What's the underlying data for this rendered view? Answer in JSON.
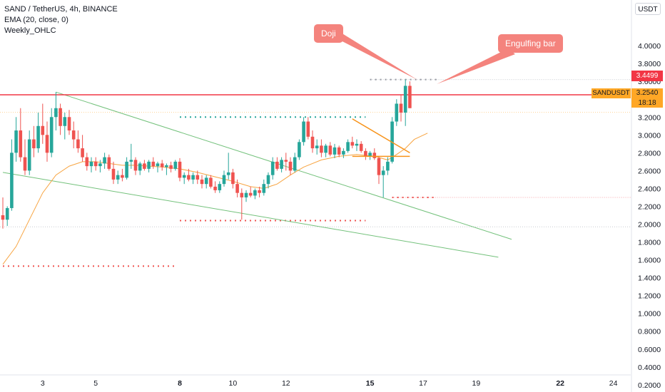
{
  "legend": {
    "symbol": "SAND / TetherUS, 4h, BINANCE",
    "ema": "EMA (20, close, 0)",
    "weekly": "Weekly_OHLC"
  },
  "currency_button": "USDT",
  "annotations": {
    "doji": "Doji",
    "engulfing": "Engulfing bar"
  },
  "price_tags": {
    "last_price": "3.4499",
    "symbol_name": "SANDUSDT",
    "symbol_price": "3.2540",
    "countdown": "18:18"
  },
  "colors": {
    "up": "#26a69a",
    "down": "#ef5350",
    "ema": "#f7a441",
    "trend": "#73c17b",
    "triangle": "#f7931a",
    "resistance": "#f23645",
    "callout": "#f4837d"
  },
  "chart_data": {
    "type": "candlestick",
    "y_axis": {
      "min": 0.1,
      "max": 4.3,
      "ticks": [
        0.2,
        0.4,
        0.6,
        0.8,
        1.0,
        1.2,
        1.4,
        1.6,
        1.8,
        2.0,
        2.2,
        2.4,
        2.6,
        2.8,
        3.0,
        3.2,
        3.4,
        3.6,
        3.8,
        4.0
      ],
      "tick_labels": [
        "0.2000",
        "0.4000",
        "0.6000",
        "0.8000",
        "1.0000",
        "1.2000",
        "1.4000",
        "1.6000",
        "1.8000",
        "2.0000",
        "2.2000",
        "2.4000",
        "2.6000",
        "2.8000",
        "3.0000",
        "3.2000",
        "3.4000",
        "3.6000",
        "3.8000",
        "4.0000"
      ]
    },
    "x_axis": {
      "ticks": [
        {
          "label": "3",
          "bar": 9
        },
        {
          "label": "5",
          "bar": 21
        },
        {
          "label": "8",
          "bar": 40
        },
        {
          "label": "10",
          "bar": 52
        },
        {
          "label": "12",
          "bar": 64
        },
        {
          "label": "15",
          "bar": 83
        },
        {
          "label": "17",
          "bar": 95
        },
        {
          "label": "19",
          "bar": 107
        },
        {
          "label": "22",
          "bar": 126
        },
        {
          "label": "24",
          "bar": 138
        }
      ],
      "bold": [
        "8",
        "15",
        "22"
      ]
    },
    "candles": [
      [
        2.1,
        2.3,
        1.95,
        2.05
      ],
      [
        2.05,
        2.2,
        1.98,
        2.18
      ],
      [
        2.18,
        2.95,
        2.15,
        2.8
      ],
      [
        2.8,
        3.2,
        2.7,
        3.05
      ],
      [
        3.05,
        3.3,
        2.7,
        2.75
      ],
      [
        2.75,
        2.95,
        2.55,
        2.6
      ],
      [
        2.6,
        3.05,
        2.55,
        2.95
      ],
      [
        2.95,
        3.1,
        2.75,
        2.85
      ],
      [
        2.85,
        3.25,
        2.8,
        3.1
      ],
      [
        3.1,
        3.35,
        2.9,
        3.0
      ],
      [
        3.0,
        3.15,
        2.7,
        2.8
      ],
      [
        2.8,
        3.3,
        2.75,
        3.2
      ],
      [
        3.2,
        3.48,
        3.05,
        3.3
      ],
      [
        3.3,
        3.35,
        3.0,
        3.1
      ],
      [
        3.1,
        3.25,
        2.95,
        3.2
      ],
      [
        3.2,
        3.28,
        3.0,
        3.05
      ],
      [
        3.05,
        3.15,
        2.85,
        2.95
      ],
      [
        2.95,
        3.05,
        2.8,
        2.85
      ],
      [
        2.85,
        3.0,
        2.7,
        2.75
      ],
      [
        2.75,
        2.8,
        2.6,
        2.65
      ],
      [
        2.65,
        2.75,
        2.58,
        2.7
      ],
      [
        2.7,
        2.75,
        2.6,
        2.65
      ],
      [
        2.65,
        2.72,
        2.58,
        2.68
      ],
      [
        2.68,
        2.8,
        2.62,
        2.75
      ],
      [
        2.75,
        2.78,
        2.6,
        2.62
      ],
      [
        2.62,
        2.7,
        2.45,
        2.5
      ],
      [
        2.5,
        2.6,
        2.45,
        2.55
      ],
      [
        2.55,
        2.62,
        2.48,
        2.52
      ],
      [
        2.52,
        2.75,
        2.5,
        2.7
      ],
      [
        2.7,
        2.9,
        2.62,
        2.72
      ],
      [
        2.72,
        2.75,
        2.55,
        2.6
      ],
      [
        2.6,
        2.7,
        2.55,
        2.68
      ],
      [
        2.68,
        2.72,
        2.6,
        2.62
      ],
      [
        2.62,
        2.72,
        2.58,
        2.7
      ],
      [
        2.7,
        2.75,
        2.62,
        2.65
      ],
      [
        2.65,
        2.7,
        2.58,
        2.68
      ],
      [
        2.68,
        2.72,
        2.6,
        2.64
      ],
      [
        2.64,
        2.68,
        2.55,
        2.66
      ],
      [
        2.66,
        2.7,
        2.58,
        2.62
      ],
      [
        2.62,
        2.72,
        2.6,
        2.7
      ],
      [
        2.7,
        2.74,
        2.48,
        2.52
      ],
      [
        2.52,
        2.58,
        2.45,
        2.55
      ],
      [
        2.55,
        2.62,
        2.48,
        2.5
      ],
      [
        2.5,
        2.58,
        2.45,
        2.55
      ],
      [
        2.55,
        2.6,
        2.45,
        2.5
      ],
      [
        2.5,
        2.55,
        2.4,
        2.45
      ],
      [
        2.45,
        2.55,
        2.4,
        2.52
      ],
      [
        2.52,
        2.55,
        2.4,
        2.42
      ],
      [
        2.42,
        2.48,
        2.35,
        2.38
      ],
      [
        2.38,
        2.48,
        2.35,
        2.45
      ],
      [
        2.45,
        2.6,
        2.42,
        2.55
      ],
      [
        2.55,
        2.8,
        2.5,
        2.58
      ],
      [
        2.58,
        2.62,
        2.4,
        2.45
      ],
      [
        2.45,
        2.5,
        2.3,
        2.35
      ],
      [
        2.35,
        2.4,
        2.05,
        2.3
      ],
      [
        2.3,
        2.38,
        2.25,
        2.35
      ],
      [
        2.35,
        2.42,
        2.3,
        2.32
      ],
      [
        2.32,
        2.4,
        2.28,
        2.38
      ],
      [
        2.38,
        2.42,
        2.3,
        2.35
      ],
      [
        2.35,
        2.5,
        2.32,
        2.45
      ],
      [
        2.45,
        2.58,
        2.4,
        2.55
      ],
      [
        2.55,
        2.75,
        2.5,
        2.7
      ],
      [
        2.7,
        2.75,
        2.6,
        2.62
      ],
      [
        2.62,
        2.75,
        2.58,
        2.72
      ],
      [
        2.72,
        2.8,
        2.6,
        2.7
      ],
      [
        2.7,
        2.75,
        2.55,
        2.6
      ],
      [
        2.6,
        2.8,
        2.58,
        2.75
      ],
      [
        2.75,
        2.95,
        2.72,
        2.92
      ],
      [
        2.92,
        3.2,
        2.88,
        3.15
      ],
      [
        3.15,
        3.2,
        2.95,
        2.98
      ],
      [
        2.98,
        3.05,
        2.8,
        2.85
      ],
      [
        2.85,
        2.95,
        2.78,
        2.88
      ],
      [
        2.88,
        2.95,
        2.75,
        2.8
      ],
      [
        2.8,
        2.9,
        2.75,
        2.88
      ],
      [
        2.88,
        2.92,
        2.76,
        2.78
      ],
      [
        2.78,
        2.9,
        2.74,
        2.86
      ],
      [
        2.86,
        2.88,
        2.75,
        2.78
      ],
      [
        2.78,
        2.85,
        2.74,
        2.82
      ],
      [
        2.82,
        2.95,
        2.8,
        2.92
      ],
      [
        2.92,
        2.98,
        2.85,
        2.88
      ],
      [
        2.88,
        2.95,
        2.82,
        2.9
      ],
      [
        2.9,
        2.93,
        2.8,
        2.82
      ],
      [
        2.82,
        2.85,
        2.72,
        2.76
      ],
      [
        2.76,
        2.82,
        2.72,
        2.8
      ],
      [
        2.8,
        2.85,
        2.72,
        2.74
      ],
      [
        2.74,
        2.76,
        2.45,
        2.55
      ],
      [
        2.55,
        2.65,
        2.3,
        2.6
      ],
      [
        2.6,
        2.75,
        2.55,
        2.7
      ],
      [
        2.7,
        3.2,
        2.68,
        3.15
      ],
      [
        3.15,
        3.4,
        3.1,
        3.35
      ],
      [
        3.35,
        3.45,
        3.15,
        3.25
      ],
      [
        3.25,
        3.62,
        3.1,
        3.55
      ],
      [
        3.55,
        3.6,
        3.3,
        3.3
      ]
    ],
    "ema": [
      [
        0,
        1.55
      ],
      [
        3,
        1.75
      ],
      [
        6,
        2.05
      ],
      [
        9,
        2.35
      ],
      [
        12,
        2.55
      ],
      [
        15,
        2.65
      ],
      [
        18,
        2.7
      ],
      [
        21,
        2.7
      ],
      [
        24,
        2.68
      ],
      [
        27,
        2.66
      ],
      [
        30,
        2.66
      ],
      [
        33,
        2.65
      ],
      [
        36,
        2.64
      ],
      [
        40,
        2.62
      ],
      [
        44,
        2.58
      ],
      [
        48,
        2.53
      ],
      [
        52,
        2.48
      ],
      [
        56,
        2.42
      ],
      [
        59,
        2.4
      ],
      [
        62,
        2.45
      ],
      [
        65,
        2.55
      ],
      [
        68,
        2.64
      ],
      [
        72,
        2.72
      ],
      [
        76,
        2.76
      ],
      [
        80,
        2.78
      ],
      [
        84,
        2.76
      ],
      [
        87,
        2.72
      ],
      [
        89,
        2.78
      ],
      [
        91,
        2.85
      ],
      [
        93,
        2.95
      ],
      [
        96,
        3.02
      ]
    ],
    "trendlines": [
      {
        "from": [
          12,
          3.48
        ],
        "to": [
          115,
          1.83
        ]
      },
      {
        "from": [
          0,
          2.58
        ],
        "to": [
          112,
          1.63
        ]
      }
    ],
    "triangle": {
      "upper": {
        "from": [
          79,
          3.18
        ],
        "to": [
          92,
          2.8
        ]
      },
      "lower": {
        "from": [
          79,
          2.76
        ],
        "to": [
          92,
          2.76
        ]
      }
    },
    "resistance_level": 3.4499,
    "weekly_levels": [
      {
        "price": 1.53,
        "from": 0,
        "to": 39
      },
      {
        "price": 2.04,
        "from": 40,
        "to": 82
      },
      {
        "price": 3.2,
        "from": 40,
        "to": 82
      },
      {
        "price": 2.3,
        "from": 88,
        "to": 98
      },
      {
        "price": 3.62,
        "from": 83,
        "to": 98
      }
    ],
    "price_line": 3.254,
    "reference_lines": [
      2.3,
      1.97,
      3.62
    ]
  }
}
